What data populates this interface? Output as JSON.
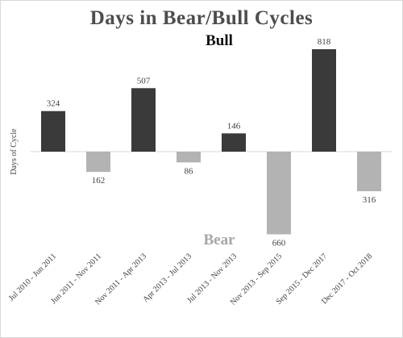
{
  "chart_data": {
    "type": "bar",
    "title": "Days in Bear/Bull Cycles",
    "ylabel": "Days of Cycle",
    "xlabel": "",
    "categories": [
      "Jul 2010 - Jun 2011",
      "Jun 2011 - Nov 2011",
      "Nov 2011 - Apr 2013",
      "Apr 2013 - Jul 2013",
      "Jul 2013 - Nov 2013",
      "Nov 2013 - Sep 2015",
      "Sep 2015 - Dec 2017",
      "Dec 2017 - Oct 2018"
    ],
    "values": [
      324,
      -162,
      507,
      -86,
      146,
      -660,
      818,
      -316
    ],
    "value_labels": [
      "324",
      "162",
      "507",
      "86",
      "146",
      "660",
      "818",
      "316"
    ],
    "annotations": {
      "bull": "Bull",
      "bear": "Bear"
    },
    "colors": {
      "bull": "#3a3a3a",
      "bear": "#b3b3b3",
      "axis": "#d9d9d9"
    },
    "ylim": [
      -660,
      818
    ],
    "grid": false,
    "legend": "none"
  }
}
